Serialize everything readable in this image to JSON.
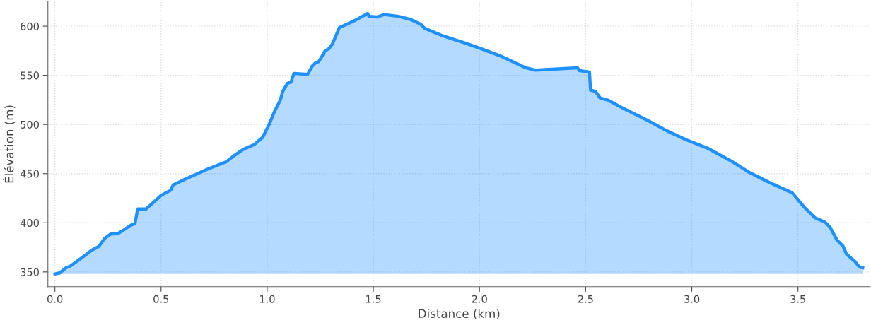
{
  "chart_data": {
    "type": "area",
    "xlabel": "Distance (km)",
    "ylabel": "Élévation (m)",
    "xlim": [
      -0.033,
      3.84
    ],
    "ylim": [
      335,
      625
    ],
    "xticks": [
      {
        "value": 0,
        "label": "0.0"
      },
      0.5,
      {
        "value": 1,
        "label": "1.0"
      },
      1.5,
      {
        "value": 2,
        "label": "2.0"
      },
      2.5,
      {
        "value": 3,
        "label": "3.0"
      },
      3.5
    ],
    "yticks": [
      350,
      400,
      450,
      500,
      550,
      600
    ],
    "grid": true,
    "x": [
      0,
      0.023,
      0.051,
      0.073,
      0.118,
      0.173,
      0.207,
      0.234,
      0.262,
      0.296,
      0.323,
      0.357,
      0.377,
      0.39,
      0.429,
      0.501,
      0.545,
      0.557,
      0.607,
      0.718,
      0.807,
      0.84,
      0.89,
      0.94,
      0.979,
      1.007,
      1.034,
      1.062,
      1.073,
      1.096,
      1.112,
      1.126,
      1.19,
      1.212,
      1.229,
      1.242,
      1.257,
      1.273,
      1.29,
      1.307,
      1.34,
      1.401,
      1.429,
      1.473,
      1.479,
      1.518,
      1.551,
      1.618,
      1.673,
      1.723,
      1.74,
      1.829,
      1.929,
      1.996,
      2.096,
      2.218,
      2.262,
      2.462,
      2.471,
      2.518,
      2.523,
      2.546,
      2.568,
      2.607,
      2.684,
      2.796,
      2.884,
      2.973,
      3.073,
      3.184,
      3.273,
      3.362,
      3.473,
      3.529,
      3.579,
      3.629,
      3.651,
      3.684,
      3.712,
      3.729,
      3.768,
      3.79,
      3.805
    ],
    "series": [
      {
        "color": "#1e90ff",
        "values": [
          348,
          349,
          354,
          356,
          363,
          372,
          376,
          384,
          388.5,
          389,
          392.5,
          397.5,
          399,
          414,
          414,
          428,
          433,
          438.5,
          443.7,
          454.5,
          462,
          467.7,
          475,
          479.7,
          487,
          499,
          513,
          525,
          533.7,
          542,
          543,
          552,
          551,
          559.4,
          563,
          563.8,
          569,
          575,
          577,
          581.8,
          598.6,
          604.6,
          607.7,
          613,
          610,
          609.4,
          611.8,
          610,
          607,
          602,
          598,
          590,
          583,
          578,
          570,
          557.7,
          555.3,
          557.7,
          554.8,
          553.4,
          535,
          533.7,
          527,
          524.6,
          515.7,
          503.7,
          493.4,
          484.5,
          476,
          463,
          451,
          441.3,
          430.5,
          416,
          405.3,
          400.4,
          395.6,
          382.4,
          376.4,
          368,
          360.8,
          354.8,
          354.3
        ]
      }
    ]
  }
}
